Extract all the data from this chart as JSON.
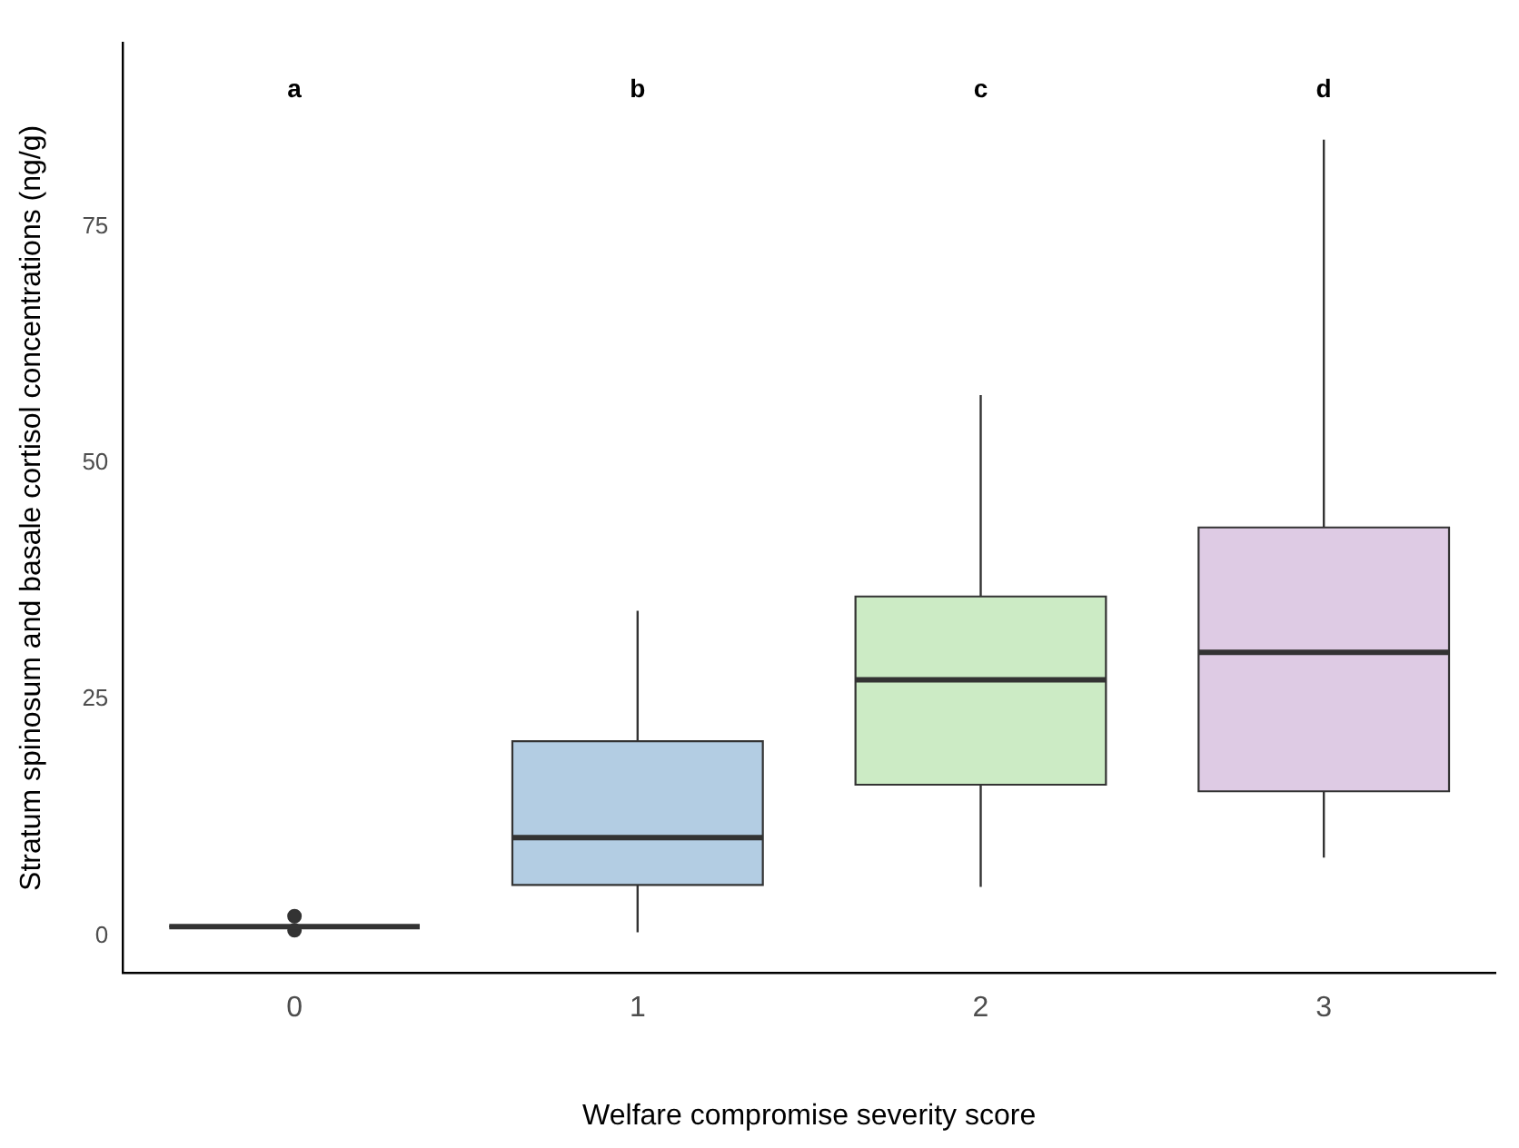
{
  "chart_data": {
    "type": "box",
    "xlabel": "Welfare compromise severity score",
    "ylabel": "Stratum spinosum and basale cortisol concentrations (ng/g)",
    "categories": [
      "0",
      "1",
      "2",
      "3"
    ],
    "colors": [
      "#333333",
      "#b3cde3",
      "#ccebc5",
      "#decbe4"
    ],
    "ylim": [
      -3.9,
      94.4
    ],
    "yticks": [
      0,
      25,
      50,
      75
    ],
    "grid": false,
    "legend": false,
    "boxes": [
      {
        "low": 1.0,
        "q1": 1.0,
        "median": 1.0,
        "q3": 1.0,
        "high": 1.0,
        "outliers": [
          2.1,
          0.6
        ]
      },
      {
        "low": 0.4,
        "q1": 5.4,
        "median": 10.4,
        "q3": 20.6,
        "high": 34.4
      },
      {
        "low": 5.2,
        "q1": 16.0,
        "median": 27.1,
        "q3": 35.9,
        "high": 57.2
      },
      {
        "low": 8.3,
        "q1": 15.3,
        "median": 30.0,
        "q3": 43.2,
        "high": 84.2
      }
    ],
    "annotations": [
      "a",
      "b",
      "c",
      "d"
    ]
  }
}
